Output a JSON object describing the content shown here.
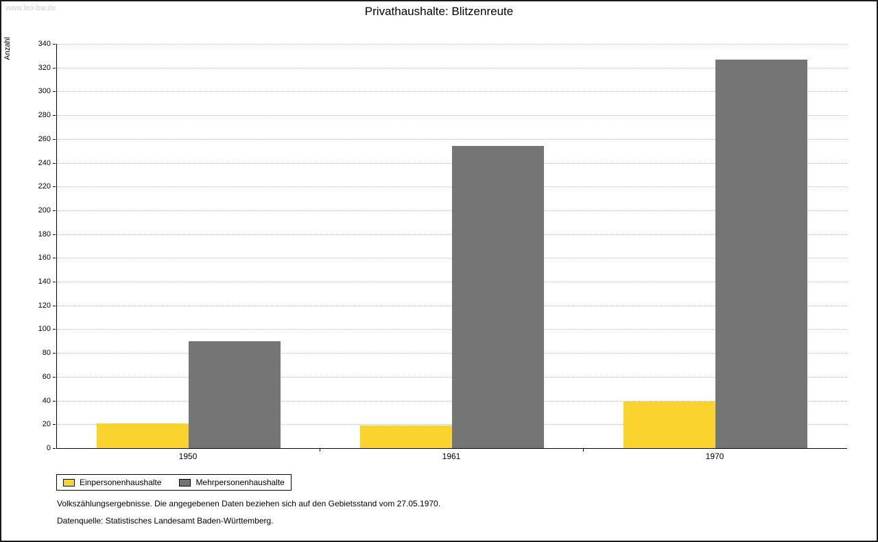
{
  "watermark": "www.leo-bw.de",
  "chart_data": {
    "type": "bar",
    "title": "Privathaushalte: Blitzenreute",
    "ylabel": "Anzahl",
    "xlabel": "",
    "categories": [
      "1950",
      "1961",
      "1970"
    ],
    "series": [
      {
        "name": "Einpersonenhaushalte",
        "color": "#FAD32F",
        "values": [
          21,
          19,
          39
        ]
      },
      {
        "name": "Mehrpersonenhaushalte",
        "color": "#757575",
        "values": [
          90,
          254,
          327
        ]
      }
    ],
    "ylim": [
      0,
      340
    ],
    "ytick_step": 20,
    "grid": "horizontal-dotted",
    "legend_position": "bottom-left"
  },
  "footnotes": [
    "Volkszählungsergebnisse. Die angegebenen Daten beziehen sich auf den Gebietsstand vom 27.05.1970.",
    "Datenquelle: Statistisches Landesamt Baden-Württemberg."
  ]
}
